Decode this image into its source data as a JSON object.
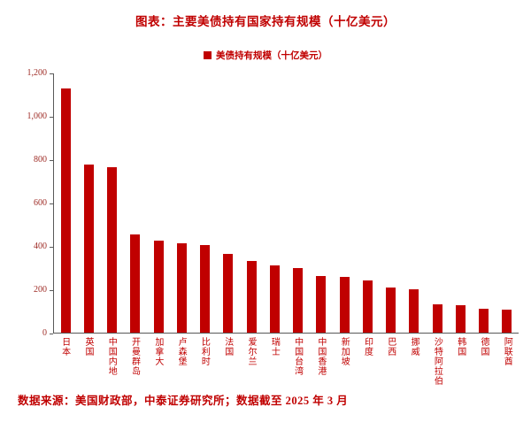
{
  "page": {
    "title": "图表：主要美债持有国家持有规模（十亿美元）",
    "source": "数据来源：美国财政部，中泰证券研究所；数据截至 2025 年 3 月"
  },
  "legend": {
    "label": "美债持有规模（十亿美元）"
  },
  "colors": {
    "accent": "#C00000",
    "axis": "#595959",
    "background": "#FFFFFF"
  },
  "chart_data": {
    "type": "bar",
    "title": "图表：主要美债持有国家持有规模（十亿美元）",
    "legend": [
      "美债持有规模（十亿美元）"
    ],
    "legend_position": "top",
    "grid": false,
    "xlabel": "",
    "ylabel": "",
    "ylim": [
      0,
      1200
    ],
    "ytick_step": 200,
    "categories": [
      "日本",
      "英国",
      "中国内地",
      "开曼群岛",
      "加拿大",
      "卢森堡",
      "比利时",
      "法国",
      "爱尔兰",
      "瑞士",
      "中国台湾",
      "中国香港",
      "新加坡",
      "印度",
      "巴西",
      "挪威",
      "沙特阿拉伯",
      "韩国",
      "德国",
      "阿联酋"
    ],
    "values": [
      1131,
      780,
      765,
      455,
      428,
      412,
      404,
      363,
      330,
      310,
      298,
      261,
      260,
      240,
      208,
      200,
      131,
      126,
      110,
      106
    ]
  }
}
